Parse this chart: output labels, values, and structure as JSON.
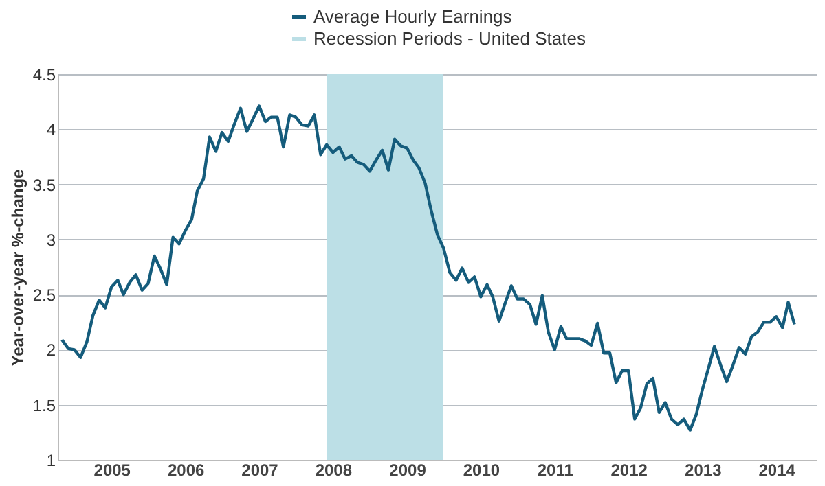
{
  "chart_data": {
    "type": "line",
    "ylabel": "Year-over-year %-change",
    "legend": "top",
    "grid": "y",
    "xlim": [
      "2004-04-10",
      "2014-07-20"
    ],
    "xticks": [
      "2005",
      "2006",
      "2007",
      "2008",
      "2009",
      "2010",
      "2011",
      "2012",
      "2013",
      "2014"
    ],
    "ylim": [
      1,
      4.5
    ],
    "yticks": [
      1,
      1.5,
      2,
      2.5,
      3,
      3.5,
      4,
      4.5
    ],
    "x": [
      "2004-05",
      "2004-06",
      "2004-07",
      "2004-08",
      "2004-09",
      "2004-10",
      "2004-11",
      "2004-12",
      "2005-01",
      "2005-02",
      "2005-03",
      "2005-04",
      "2005-05",
      "2005-06",
      "2005-07",
      "2005-08",
      "2005-09",
      "2005-10",
      "2005-11",
      "2005-12",
      "2006-01",
      "2006-02",
      "2006-03",
      "2006-04",
      "2006-05",
      "2006-06",
      "2006-07",
      "2006-08",
      "2006-09",
      "2006-10",
      "2006-11",
      "2006-12",
      "2007-01",
      "2007-02",
      "2007-03",
      "2007-04",
      "2007-05",
      "2007-06",
      "2007-07",
      "2007-08",
      "2007-09",
      "2007-10",
      "2007-11",
      "2007-12",
      "2008-01",
      "2008-02",
      "2008-03",
      "2008-04",
      "2008-05",
      "2008-06",
      "2008-07",
      "2008-08",
      "2008-09",
      "2008-10",
      "2008-11",
      "2008-12",
      "2009-01",
      "2009-02",
      "2009-03",
      "2009-04",
      "2009-05",
      "2009-06",
      "2009-07",
      "2009-08",
      "2009-09",
      "2009-10",
      "2009-11",
      "2009-12",
      "2010-01",
      "2010-02",
      "2010-03",
      "2010-04",
      "2010-05",
      "2010-06",
      "2010-07",
      "2010-08",
      "2010-09",
      "2010-10",
      "2010-11",
      "2010-12",
      "2011-01",
      "2011-02",
      "2011-03",
      "2011-04",
      "2011-05",
      "2011-06",
      "2011-07",
      "2011-08",
      "2011-09",
      "2011-10",
      "2011-11",
      "2011-12",
      "2012-01",
      "2012-02",
      "2012-03",
      "2012-04",
      "2012-05",
      "2012-06",
      "2012-07",
      "2012-08",
      "2012-09",
      "2012-10",
      "2012-11",
      "2012-12",
      "2013-01",
      "2013-02",
      "2013-03",
      "2013-04",
      "2013-05",
      "2013-06",
      "2013-07",
      "2013-08",
      "2013-09",
      "2013-10",
      "2013-11",
      "2013-12",
      "2014-01",
      "2014-02",
      "2014-03",
      "2014-04"
    ],
    "series": [
      {
        "name": "Average Hourly Earnings",
        "color": "#155c7c",
        "values": [
          2.09,
          2.01,
          2.0,
          1.93,
          2.07,
          2.31,
          2.45,
          2.38,
          2.57,
          2.63,
          2.5,
          2.61,
          2.68,
          2.54,
          2.6,
          2.85,
          2.73,
          2.59,
          3.02,
          2.96,
          3.08,
          3.18,
          3.44,
          3.55,
          3.93,
          3.8,
          3.97,
          3.89,
          4.05,
          4.19,
          3.98,
          4.09,
          4.21,
          4.07,
          4.11,
          4.11,
          3.84,
          4.13,
          4.11,
          4.04,
          4.03,
          4.13,
          3.77,
          3.86,
          3.79,
          3.84,
          3.73,
          3.76,
          3.7,
          3.68,
          3.62,
          3.72,
          3.81,
          3.63,
          3.91,
          3.85,
          3.83,
          3.72,
          3.65,
          3.51,
          3.26,
          3.04,
          2.92,
          2.7,
          2.63,
          2.74,
          2.61,
          2.66,
          2.48,
          2.59,
          2.48,
          2.26,
          2.42,
          2.58,
          2.46,
          2.46,
          2.41,
          2.23,
          2.49,
          2.16,
          2.0,
          2.21,
          2.1,
          2.1,
          2.1,
          2.08,
          2.04,
          2.24,
          1.97,
          1.97,
          1.7,
          1.81,
          1.81,
          1.37,
          1.47,
          1.69,
          1.74,
          1.43,
          1.52,
          1.37,
          1.32,
          1.37,
          1.27,
          1.41,
          1.64,
          1.84,
          2.03,
          1.86,
          1.71,
          1.86,
          2.02,
          1.96,
          2.12,
          2.16,
          2.25,
          2.25,
          2.3,
          2.2,
          2.43,
          2.23
        ]
      }
    ],
    "bands": [
      {
        "axis": "x",
        "from": "2007-12",
        "to": "2009-06-30",
        "label": "Recession Periods - United States",
        "color": "#bcdfe6"
      }
    ]
  }
}
